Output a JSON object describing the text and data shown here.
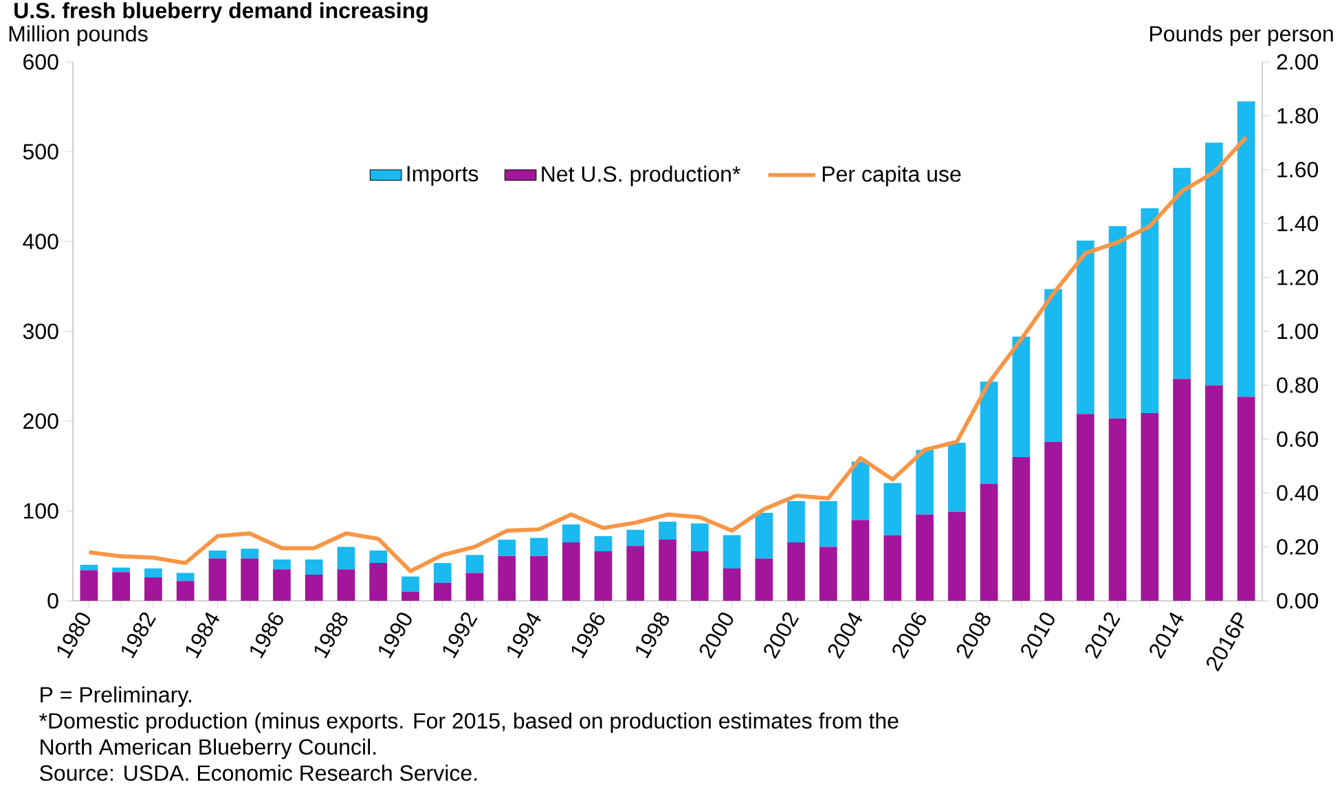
{
  "chart_data": {
    "type": "bar",
    "stacked": true,
    "title": "U.S. fresh blueberry demand increasing",
    "ylabel": "Million pounds",
    "y2label": "Pounds per person",
    "categories": [
      "1980",
      null,
      "1982",
      null,
      "1984",
      null,
      "1986",
      null,
      "1988",
      null,
      "1990",
      null,
      "1992",
      null,
      "1994",
      null,
      "1996",
      null,
      "1998",
      null,
      "2000",
      null,
      "2002",
      null,
      "2004",
      null,
      "2006",
      null,
      "2008",
      null,
      "2010",
      null,
      "2012",
      null,
      "2014",
      null,
      "2016P"
    ],
    "series": [
      {
        "name": "Net U.S. production*",
        "color": "#a3159a",
        "values": [
          34,
          32,
          26,
          22,
          47,
          47,
          35,
          29,
          35,
          42,
          10,
          20,
          31,
          50,
          50,
          65,
          55,
          61,
          68,
          55,
          36,
          47,
          65,
          60,
          90,
          73,
          96,
          99,
          130,
          160,
          177,
          208,
          203,
          209,
          247,
          240,
          227
        ]
      },
      {
        "name": "Imports",
        "color": "#1ab9f0",
        "values": [
          6,
          5,
          10,
          9,
          9,
          11,
          11,
          17,
          25,
          14,
          17,
          22,
          20,
          18,
          20,
          20,
          17,
          18,
          20,
          31,
          37,
          51,
          46,
          51,
          65,
          58,
          72,
          77,
          114,
          134,
          170,
          193,
          214,
          228,
          235,
          270,
          329
        ]
      },
      {
        "name": "Per capita use",
        "type": "line",
        "axis": "y2",
        "color": "#f79646",
        "values": [
          0.18,
          0.165,
          0.16,
          0.14,
          0.24,
          0.25,
          0.195,
          0.195,
          0.25,
          0.23,
          0.11,
          0.17,
          0.2,
          0.26,
          0.265,
          0.32,
          0.27,
          0.29,
          0.32,
          0.31,
          0.26,
          0.34,
          0.39,
          0.38,
          0.53,
          0.45,
          0.56,
          0.59,
          0.81,
          0.97,
          1.14,
          1.29,
          1.33,
          1.39,
          1.52,
          1.59,
          1.72
        ]
      }
    ],
    "ylim": [
      0,
      600
    ],
    "yticks": [
      0,
      100,
      200,
      300,
      400,
      500,
      600
    ],
    "y2lim": [
      0,
      2
    ],
    "y2ticks": [
      {
        "value": 0,
        "label": "0.00"
      },
      {
        "value": 0.2,
        "label": "0.20"
      },
      {
        "value": 0.4,
        "label": "0.40"
      },
      {
        "value": 0.6,
        "label": "0.60"
      },
      {
        "value": 0.8,
        "label": "0.80"
      },
      {
        "value": 1,
        "label": "1.00"
      },
      {
        "value": 1.2,
        "label": "1.20"
      },
      {
        "value": 1.4,
        "label": "1.40"
      },
      {
        "value": 1.6,
        "label": "1.60"
      },
      {
        "value": 1.8,
        "label": "1.80"
      },
      {
        "value": 2,
        "label": "2.00"
      }
    ],
    "legend": "top",
    "grid": false,
    "marker": "none",
    "annotations": [
      "P = Preliminary.",
      "*Domestic production (minus exports. For 2015, based on production estimates from the",
      "North American Blueberry Council.",
      "Source: USDA. Economic Research Service."
    ]
  }
}
